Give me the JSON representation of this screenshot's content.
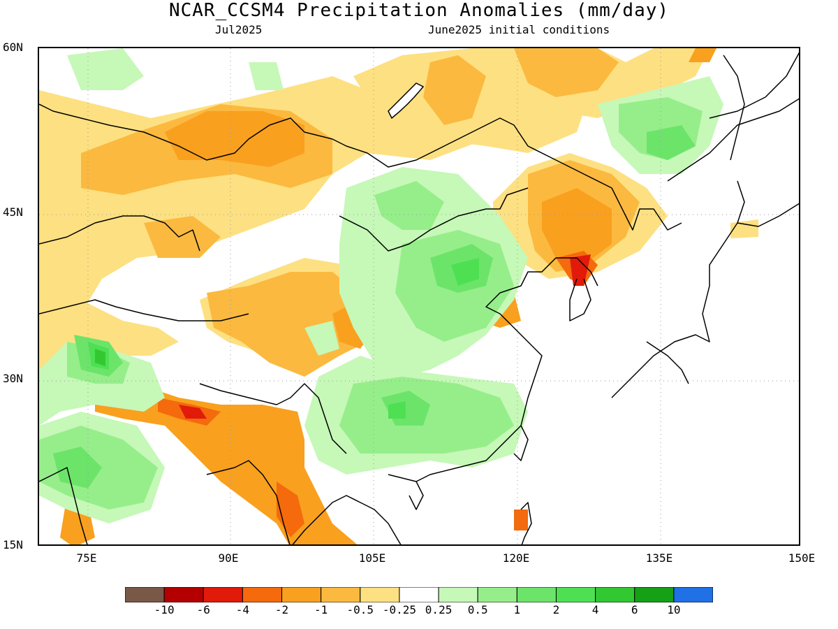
{
  "header": {
    "title": "NCAR_CCSM4 Precipitation Anomalies (mm/day)",
    "valid_month": "Jul2025",
    "initial_conditions": "June2025 initial conditions"
  },
  "axes": {
    "lat_ticks": [
      "60N",
      "45N",
      "30N",
      "15N"
    ],
    "lon_ticks": [
      "75E",
      "90E",
      "105E",
      "120E",
      "135E",
      "150E"
    ]
  },
  "colors": {
    "brown": "#7a5848",
    "darkred": "#b40000",
    "red": "#e11a0a",
    "redorange": "#f46a0c",
    "orange": "#f9a01e",
    "lightorange": "#fbb93f",
    "yellow": "#fde081",
    "white": "#ffffff",
    "palegreen": "#c6f8b8",
    "lightgreen": "#96ee8a",
    "green": "#6ce46a",
    "midgreen": "#4ee052",
    "darkgreen": "#32c832",
    "deepgreen": "#16a016",
    "blue": "#2070e6",
    "coast": "#000000"
  },
  "colorbar": {
    "labels": [
      "-10",
      "-6",
      "-4",
      "-2",
      "-1",
      "-0.5",
      "-0.25",
      "0.25",
      "0.5",
      "1",
      "2",
      "4",
      "6",
      "10"
    ],
    "swatches": [
      "#7a5848",
      "#b40000",
      "#e11a0a",
      "#f46a0c",
      "#f9a01e",
      "#fbb93f",
      "#fde081",
      "#ffffff",
      "#c6f8b8",
      "#96ee8a",
      "#6ce46a",
      "#4ee052",
      "#32c832",
      "#16a016",
      "#2070e6"
    ]
  }
}
